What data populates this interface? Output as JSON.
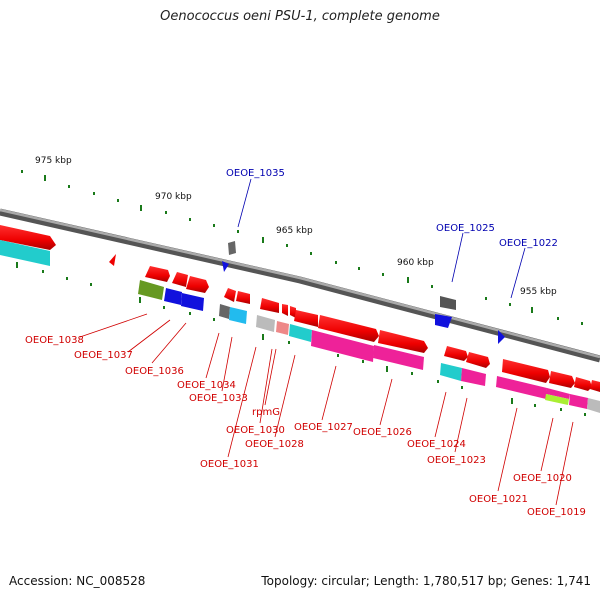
{
  "title": "Oenococcus oeni PSU-1, complete genome",
  "accession": "Accession: NC_008528",
  "summary": "Topology: circular; Length: 1,780,517 bp; Genes: 1,741",
  "scale_labels": [
    "975 kbp",
    "970 kbp",
    "965 kbp",
    "960 kbp",
    "955 kbp"
  ],
  "gene_labels": [
    "OEOE_1038",
    "OEOE_1037",
    "OEOE_1036",
    "OEOE_1034",
    "OEOE_1033",
    "rpmG",
    "OEOE_1030",
    "OEOE_1028",
    "OEOE_1031",
    "OEOE_1027",
    "OEOE_1026",
    "OEOE_1024",
    "OEOE_1023",
    "OEOE_1021",
    "OEOE_1020",
    "OEOE_1019"
  ],
  "feature_labels": [
    "OEOE_1035",
    "OEOE_1025",
    "OEOE_1022"
  ],
  "colors": {
    "red_gene": "#ee0000",
    "label_red": "#d00000",
    "label_blue": "#0000b0",
    "backbone": "#888888",
    "tick": "#1a7a1a",
    "cyan": "#22cccc",
    "magenta": "#ee2299",
    "olive": "#669922",
    "blue": "#1111dd",
    "grey": "#666666",
    "lightgrey": "#bbbbbb",
    "pink": "#ee8888",
    "lime": "#aaee33"
  }
}
